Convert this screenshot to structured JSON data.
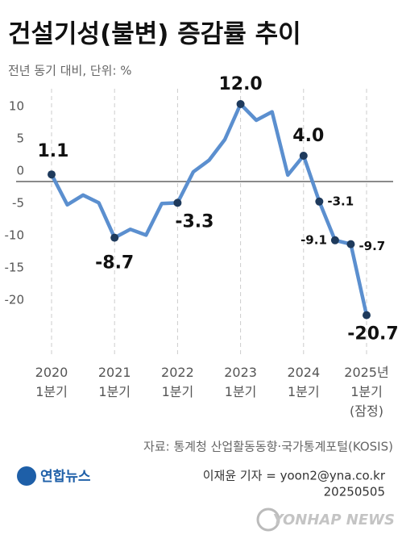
{
  "chart_data": {
    "type": "line",
    "title": "건설기성(불변) 증감률 추이",
    "subtitle": "전년 동기 대비, 단위: %",
    "categories": [
      "2020\n1분기",
      null,
      null,
      null,
      "2021\n1분기",
      null,
      null,
      null,
      "2022\n1분기",
      null,
      null,
      null,
      "2023\n1분기",
      null,
      null,
      null,
      "2024\n1분기",
      null,
      null,
      null,
      "2025년\n1분기\n(잠정)"
    ],
    "values": [
      1.1,
      -3.6,
      -2.1,
      -3.3,
      -8.7,
      -7.4,
      -8.3,
      -3.4,
      -3.3,
      1.5,
      3.3,
      6.5,
      12.0,
      9.5,
      10.8,
      1.0,
      4.0,
      -3.1,
      -9.1,
      -9.7,
      -20.7
    ],
    "value_labels": [
      "1.1",
      null,
      null,
      null,
      "-8.7",
      null,
      null,
      null,
      "-3.3",
      null,
      null,
      null,
      "12.0",
      null,
      null,
      null,
      "4.0",
      "-3.1",
      "-9.1",
      "-9.7",
      "-20.7"
    ],
    "color": "#5b8fcf",
    "marker_color": "#1e3a5c",
    "ylim": [
      -25,
      15
    ],
    "yticks": [
      10,
      5,
      0,
      -5,
      -10,
      -15,
      -20
    ],
    "source": "자료: 통계청 산업활동동향·국가통계포털(KOSIS)",
    "logo": "연합뉴스",
    "credit": "이재윤 기자 = yoon2@yna.co.kr",
    "date": "20250505",
    "watermark": "YONHAP NEWS"
  }
}
